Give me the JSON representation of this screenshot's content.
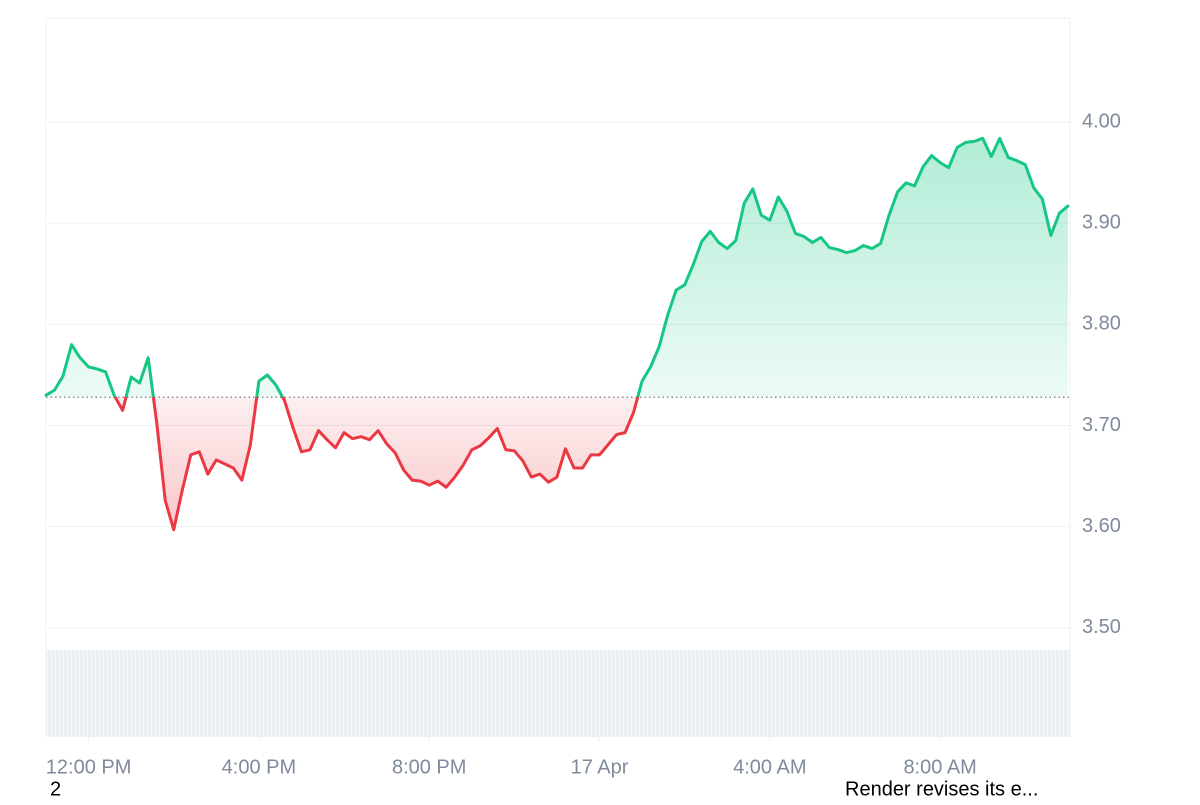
{
  "chart_data": {
    "type": "line",
    "x": [
      11.0,
      11.2,
      11.4,
      11.6,
      11.8,
      12.0,
      12.2,
      12.4,
      12.6,
      12.8,
      13.0,
      13.2,
      13.4,
      13.6,
      13.8,
      14.0,
      14.2,
      14.4,
      14.6,
      14.8,
      15.0,
      15.2,
      15.4,
      15.6,
      15.8,
      16.0,
      16.2,
      16.4,
      16.6,
      16.8,
      17.0,
      17.2,
      17.4,
      17.6,
      17.8,
      18.0,
      18.2,
      18.4,
      18.6,
      18.8,
      19.0,
      19.2,
      19.4,
      19.6,
      19.8,
      20.0,
      20.2,
      20.4,
      20.6,
      20.8,
      21.0,
      21.2,
      21.4,
      21.6,
      21.8,
      22.0,
      22.2,
      22.4,
      22.6,
      22.8,
      23.0,
      23.2,
      23.4,
      23.6,
      23.8,
      24.0,
      24.2,
      24.4,
      24.6,
      24.8,
      25.0,
      25.2,
      25.4,
      25.6,
      25.8,
      26.0,
      26.2,
      26.4,
      26.6,
      26.8,
      27.0,
      27.2,
      27.4,
      27.6,
      27.8,
      28.0,
      28.2,
      28.4,
      28.6,
      28.8,
      29.0,
      29.2,
      29.4,
      29.6,
      29.8,
      30.0,
      30.2,
      30.4,
      30.6,
      30.8,
      31.0,
      31.2,
      31.4,
      31.6,
      31.8,
      32.0,
      32.2,
      32.4,
      32.6,
      32.8,
      33.0,
      33.2,
      33.4,
      33.6,
      33.8,
      34.0,
      34.2,
      34.4,
      34.6,
      34.8,
      35.0
    ],
    "series": [
      {
        "values": [
          3.73,
          3.735,
          3.749,
          3.78,
          3.767,
          3.758,
          3.756,
          3.753,
          3.73,
          3.715,
          3.748,
          3.742,
          3.767,
          3.703,
          3.626,
          3.597,
          3.636,
          3.671,
          3.674,
          3.652,
          3.666,
          3.662,
          3.658,
          3.646,
          3.681,
          3.744,
          3.75,
          3.74,
          3.725,
          3.698,
          3.674,
          3.676,
          3.695,
          3.686,
          3.678,
          3.693,
          3.687,
          3.689,
          3.686,
          3.695,
          3.682,
          3.673,
          3.656,
          3.646,
          3.645,
          3.641,
          3.645,
          3.639,
          3.649,
          3.661,
          3.676,
          3.68,
          3.688,
          3.697,
          3.676,
          3.675,
          3.665,
          3.649,
          3.652,
          3.644,
          3.649,
          3.677,
          3.658,
          3.658,
          3.671,
          3.671,
          3.681,
          3.691,
          3.693,
          3.713,
          3.744,
          3.758,
          3.778,
          3.809,
          3.834,
          3.839,
          3.859,
          3.882,
          3.892,
          3.881,
          3.875,
          3.883,
          3.92,
          3.934,
          3.908,
          3.903,
          3.926,
          3.912,
          3.89,
          3.887,
          3.881,
          3.886,
          3.876,
          3.874,
          3.871,
          3.873,
          3.878,
          3.875,
          3.88,
          3.908,
          3.931,
          3.94,
          3.937,
          3.956,
          3.967,
          3.96,
          3.955,
          3.975,
          3.98,
          3.981,
          3.984,
          3.966,
          3.984,
          3.965,
          3.962,
          3.958,
          3.935,
          3.924,
          3.888,
          3.91,
          3.917
        ]
      }
    ],
    "baseline": 3.728,
    "up_color": "#16c784",
    "down_color": "#ea3943",
    "xlim": [
      11.0,
      35.05
    ],
    "xticks": [
      {
        "value": 12,
        "label": "12:00 PM"
      },
      {
        "value": 16,
        "label": "4:00 PM"
      },
      {
        "value": 20,
        "label": "8:00 PM"
      },
      {
        "value": 24,
        "label": "17 Apr"
      },
      {
        "value": 28,
        "label": "4:00 AM"
      },
      {
        "value": 32,
        "label": "8:00 AM"
      }
    ],
    "ylim": [
      3.392,
      4.103
    ],
    "yticks": [
      {
        "value": 3.5,
        "label": "3.50"
      },
      {
        "value": 3.6,
        "label": "3.60"
      },
      {
        "value": 3.7,
        "label": "3.70"
      },
      {
        "value": 3.8,
        "label": "3.80"
      },
      {
        "value": 3.9,
        "label": "3.90"
      },
      {
        "value": 4.0,
        "label": "4.00"
      }
    ],
    "grid": true,
    "y_axis_side": "right",
    "footer_left": "2",
    "footer_right": "Render revises its e..."
  }
}
